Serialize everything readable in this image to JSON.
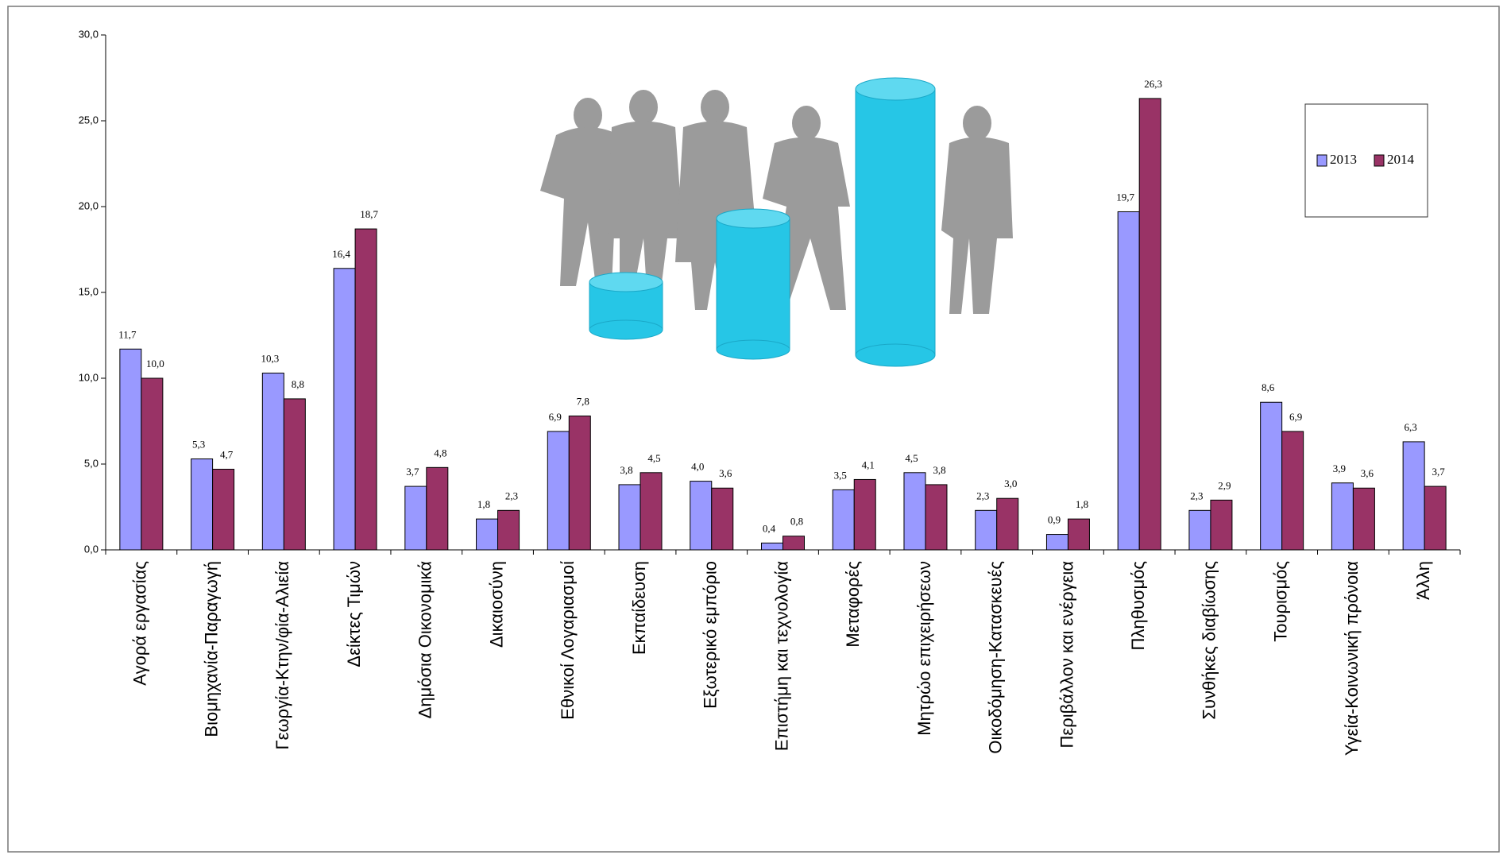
{
  "chart_data": {
    "type": "bar",
    "categories": [
      "Αγορά εργασίας",
      "Βιομηχανία-Παραγωγή",
      "Γεωργία-Κτην/φία-Αλιεία",
      "Δείκτες Τιμών",
      "Δημόσια Οικονομικά",
      "Δικαιοσύνη",
      "Εθνικοί Λογαριασμοί",
      "Εκπαίδευση",
      "Εξωτερικό εμπόριο",
      "Επιστήμη και τεχνολογία",
      "Μεταφορές",
      "Μητρώο επιχειρήσεων",
      "Οικοδόμηση-Κατασκευές",
      "Περιβάλλον και ενέργεια",
      "Πληθυσμός",
      "Συνθήκες διαβίωσης",
      "Τουρισμός",
      "Υγεία-Κοινωνική πρόνοια",
      "Άλλη"
    ],
    "series": [
      {
        "name": "2013",
        "color": "#9999ff",
        "values": [
          11.7,
          5.3,
          10.3,
          16.4,
          3.7,
          1.8,
          6.9,
          3.8,
          4.0,
          0.4,
          3.5,
          4.5,
          2.3,
          0.9,
          19.7,
          2.3,
          8.6,
          3.9,
          6.3
        ],
        "value_labels": [
          "11,7",
          "5,3",
          "10,3",
          "16,4",
          "3,7",
          "1,8",
          "6,9",
          "3,8",
          "4,0",
          "0,4",
          "3,5",
          "4,5",
          "2,3",
          "0,9",
          "19,7",
          "2,3",
          "8,6",
          "3,9",
          "6,3"
        ]
      },
      {
        "name": "2014",
        "color": "#993366",
        "values": [
          10.0,
          4.7,
          8.8,
          18.7,
          4.8,
          2.3,
          7.8,
          4.5,
          3.6,
          0.8,
          4.1,
          3.8,
          3.0,
          1.8,
          26.3,
          2.9,
          6.9,
          3.6,
          3.7
        ],
        "value_labels": [
          "10,0",
          "4,7",
          "8,8",
          "18,7",
          "4,8",
          "2,3",
          "7,8",
          "4,5",
          "3,6",
          "0,8",
          "4,1",
          "3,8",
          "3,0",
          "1,8",
          "26,3",
          "2,9",
          "6,9",
          "3,6",
          "3,7"
        ]
      }
    ],
    "ylim": [
      0,
      30
    ],
    "yticks": [
      {
        "value": 0,
        "label": "0,0"
      },
      {
        "value": 5,
        "label": "5,0"
      },
      {
        "value": 10,
        "label": "10,0"
      },
      {
        "value": 15,
        "label": "15,0"
      },
      {
        "value": 20,
        "label": "20,0"
      },
      {
        "value": 25,
        "label": "25,0"
      },
      {
        "value": 30,
        "label": "30,0"
      }
    ],
    "grid": false
  }
}
